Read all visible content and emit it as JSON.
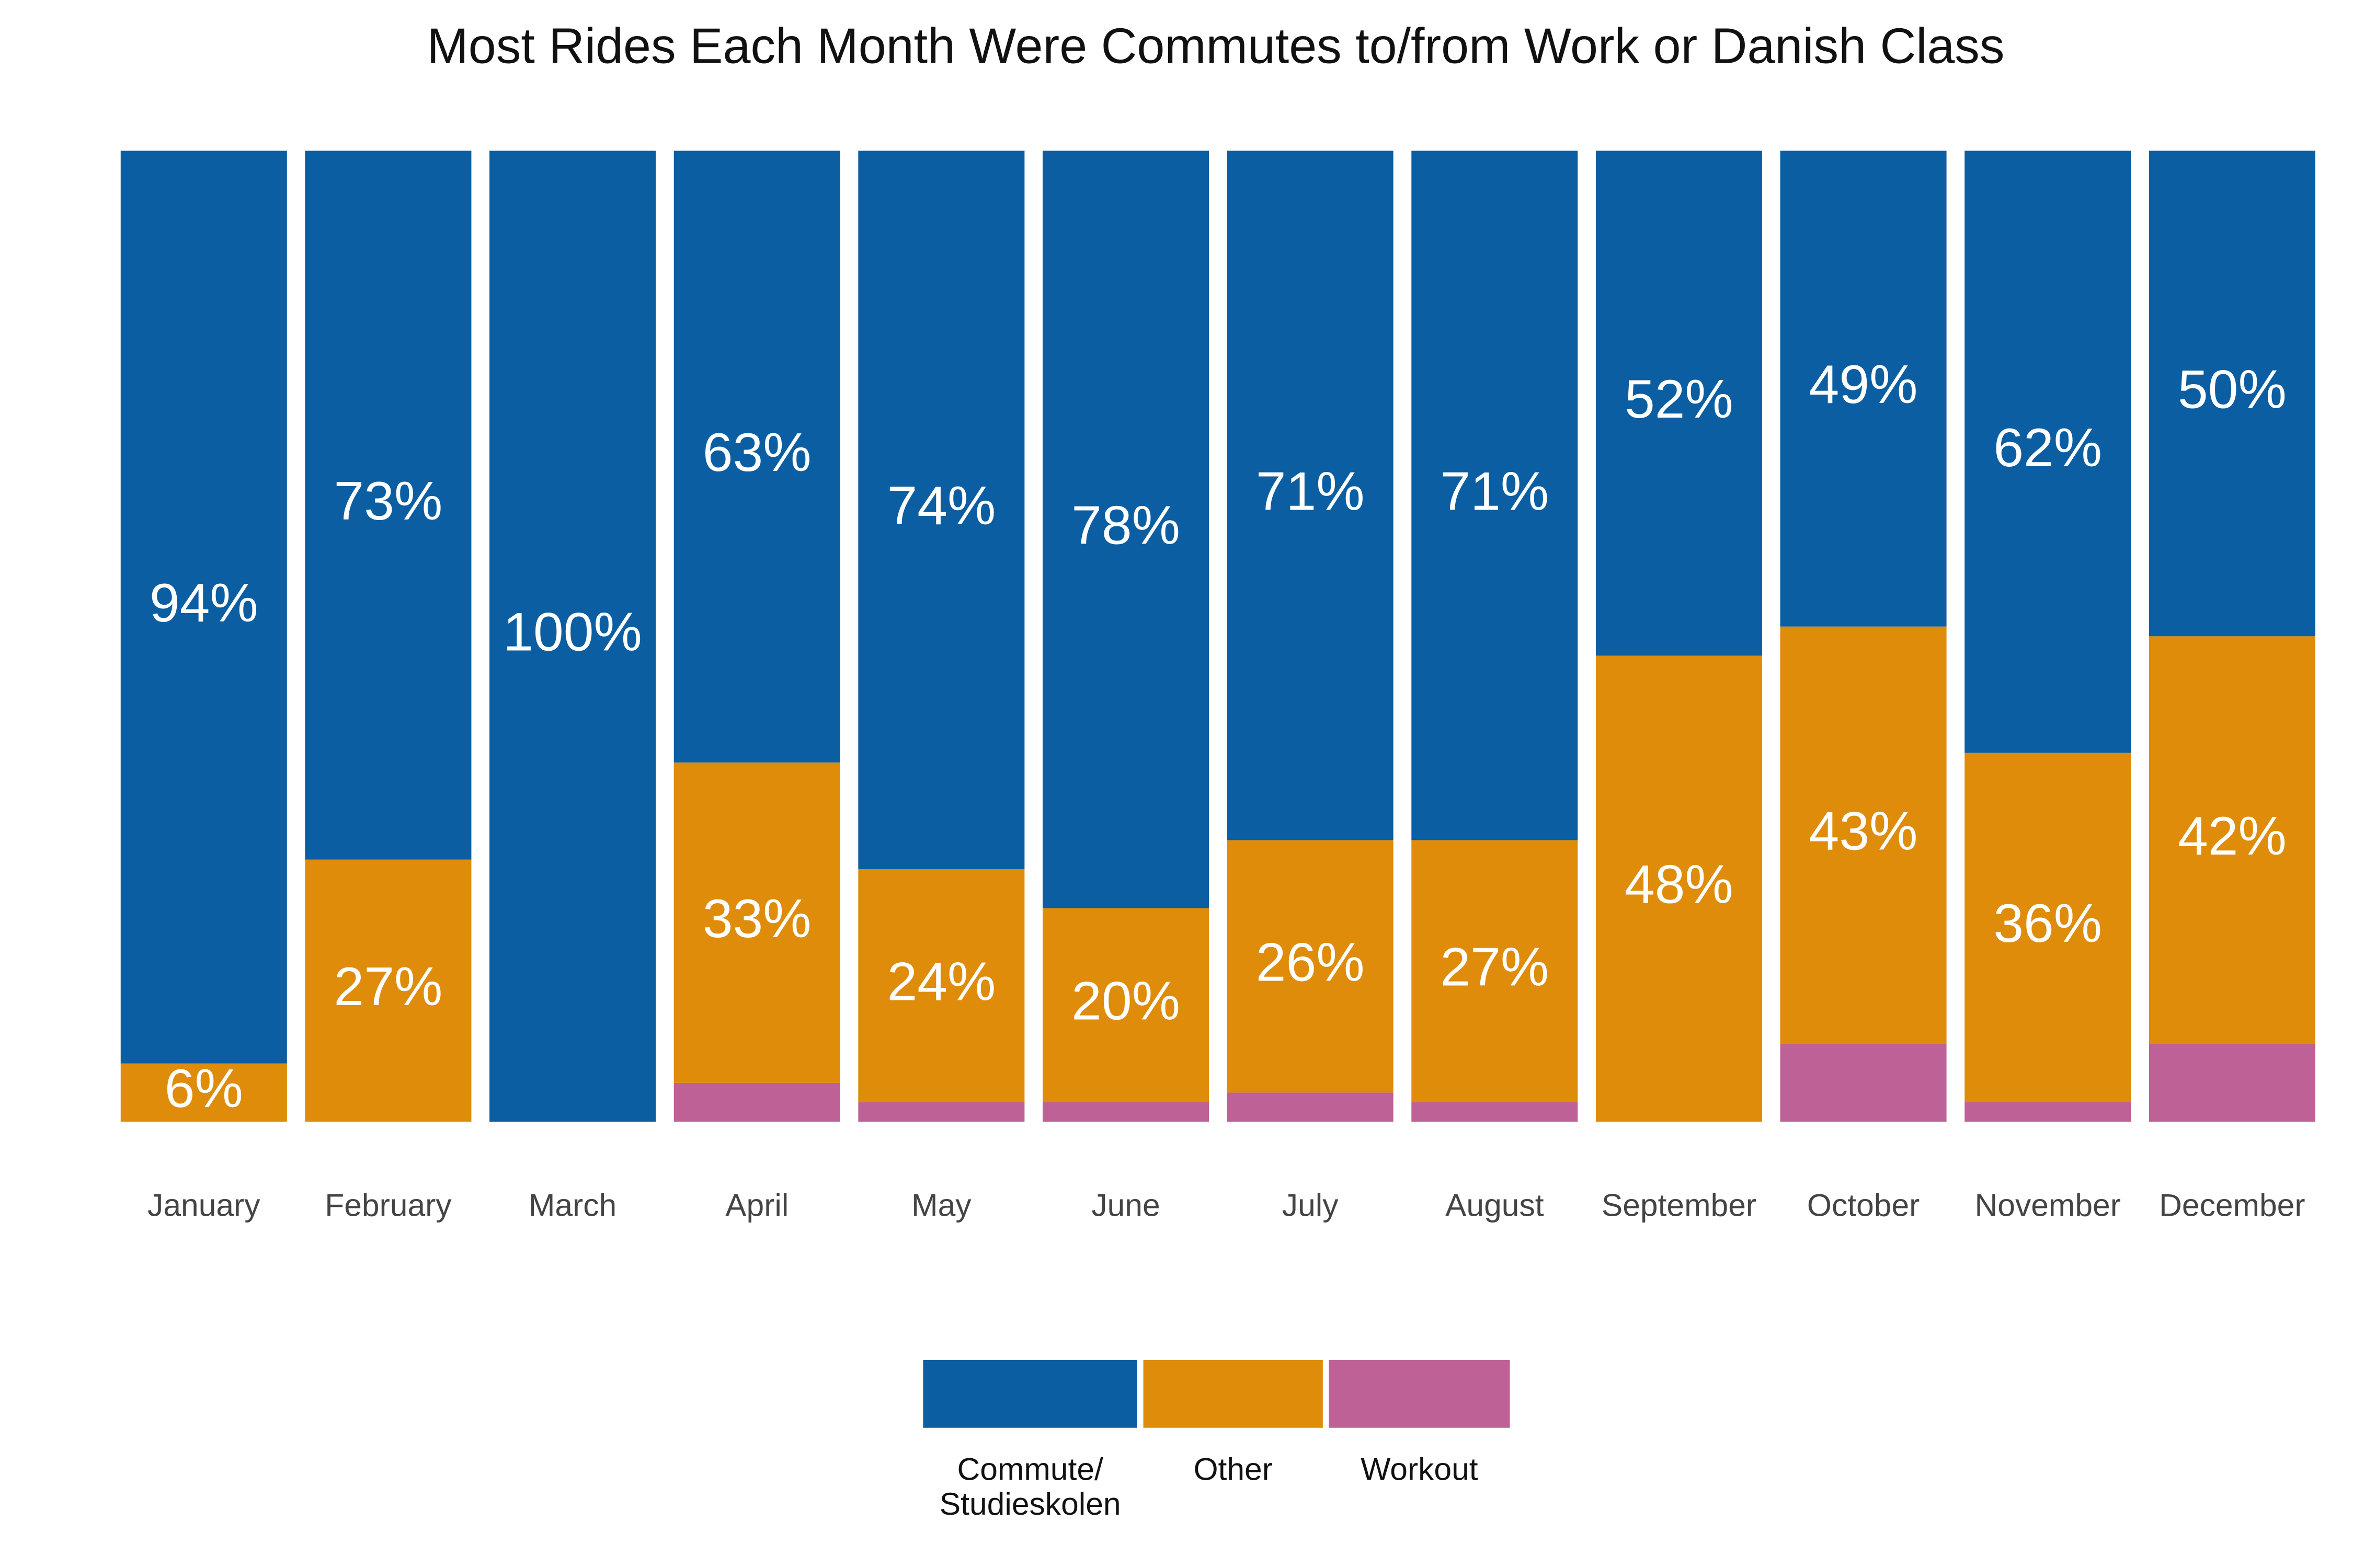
{
  "chart_data": {
    "type": "stacked_bar",
    "title": "Most Rides Each Month Were Commutes to/from Work or Danish Class",
    "categories": [
      "January",
      "February",
      "March",
      "April",
      "May",
      "June",
      "July",
      "August",
      "September",
      "October",
      "November",
      "December"
    ],
    "ylim": [
      0,
      100
    ],
    "series": [
      {
        "name": "Workout",
        "color": "#be6196",
        "values": [
          0,
          0,
          0,
          4,
          2,
          2,
          3,
          2,
          0,
          8,
          2,
          8
        ]
      },
      {
        "name": "Other",
        "color": "#de8c0a",
        "values": [
          6,
          27,
          0,
          33,
          24,
          20,
          26,
          27,
          48,
          43,
          36,
          42
        ],
        "value_labels": [
          "6%",
          "27%",
          null,
          "33%",
          "24%",
          "20%",
          "26%",
          "27%",
          "48%",
          "43%",
          "36%",
          "42%"
        ]
      },
      {
        "name": "Commute/\nStudieskolen",
        "color": "#0b5ea1",
        "values": [
          94,
          73,
          100,
          63,
          74,
          78,
          71,
          71,
          52,
          49,
          62,
          50
        ],
        "value_labels": [
          "94%",
          "73%",
          "100%",
          "63%",
          "74%",
          "78%",
          "71%",
          "71%",
          "52%",
          "49%",
          "62%",
          "50%"
        ]
      }
    ]
  }
}
